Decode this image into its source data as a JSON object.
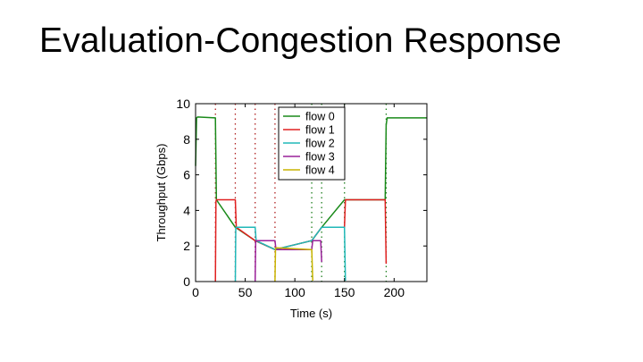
{
  "slide": {
    "title": "Evaluation-Congestion Response"
  },
  "chart_data": {
    "type": "line",
    "title": "",
    "xlabel": "Time (s)",
    "ylabel": "Throughput (Gbps)",
    "xlim": [
      0,
      233
    ],
    "ylim": [
      0,
      10
    ],
    "xticks": [
      0,
      50,
      100,
      150,
      200
    ],
    "yticks": [
      0,
      2,
      4,
      6,
      8,
      10
    ],
    "xtick_labels": [
      "0",
      "50",
      "100",
      "150",
      "200"
    ],
    "ytick_labels": [
      "0",
      "2",
      "4",
      "6",
      "8",
      "10"
    ],
    "legend_position": "top-right",
    "event_lines": [
      {
        "x": 20,
        "color": "#b02020"
      },
      {
        "x": 40,
        "color": "#b02020"
      },
      {
        "x": 60,
        "color": "#b02020"
      },
      {
        "x": 80,
        "color": "#b02020"
      },
      {
        "x": 117,
        "color": "#208020"
      },
      {
        "x": 127,
        "color": "#208020"
      },
      {
        "x": 150,
        "color": "#208020"
      },
      {
        "x": 192,
        "color": "#208020"
      }
    ],
    "series": [
      {
        "name": "flow 0",
        "color": "#1a8a1a",
        "x": [
          0,
          1,
          2,
          20,
          21,
          40,
          60,
          80,
          117,
          127,
          150,
          191,
          192,
          193,
          233
        ],
        "y": [
          6.5,
          9.2,
          9.25,
          9.2,
          4.6,
          3.05,
          2.3,
          1.8,
          2.3,
          3.05,
          4.6,
          4.6,
          8.8,
          9.2,
          9.2
        ]
      },
      {
        "name": "flow 1",
        "color": "#e02020",
        "x": [
          20,
          20.5,
          21,
          40,
          41,
          60,
          80,
          117,
          127,
          150,
          151,
          191,
          192
        ],
        "y": [
          0,
          4.5,
          4.6,
          4.6,
          3.05,
          2.3,
          1.8,
          2.3,
          3.05,
          3.05,
          4.6,
          4.6,
          1.0
        ]
      },
      {
        "name": "flow 2",
        "color": "#20b8b8",
        "x": [
          40,
          40.5,
          41,
          60,
          61,
          80,
          117,
          127,
          150,
          151
        ],
        "y": [
          0,
          3.0,
          3.05,
          3.05,
          2.3,
          1.8,
          2.3,
          3.05,
          3.05,
          0.05
        ]
      },
      {
        "name": "flow 3",
        "color": "#9a209a",
        "x": [
          60,
          60.5,
          61,
          80,
          81,
          117,
          118,
          126,
          127
        ],
        "y": [
          0,
          2.25,
          2.3,
          2.3,
          1.8,
          1.8,
          2.3,
          2.3,
          1.1
        ]
      },
      {
        "name": "flow 4",
        "color": "#c8b400",
        "x": [
          80,
          80.5,
          81,
          117,
          118
        ],
        "y": [
          0,
          1.85,
          1.9,
          1.8,
          0.05
        ]
      }
    ]
  }
}
